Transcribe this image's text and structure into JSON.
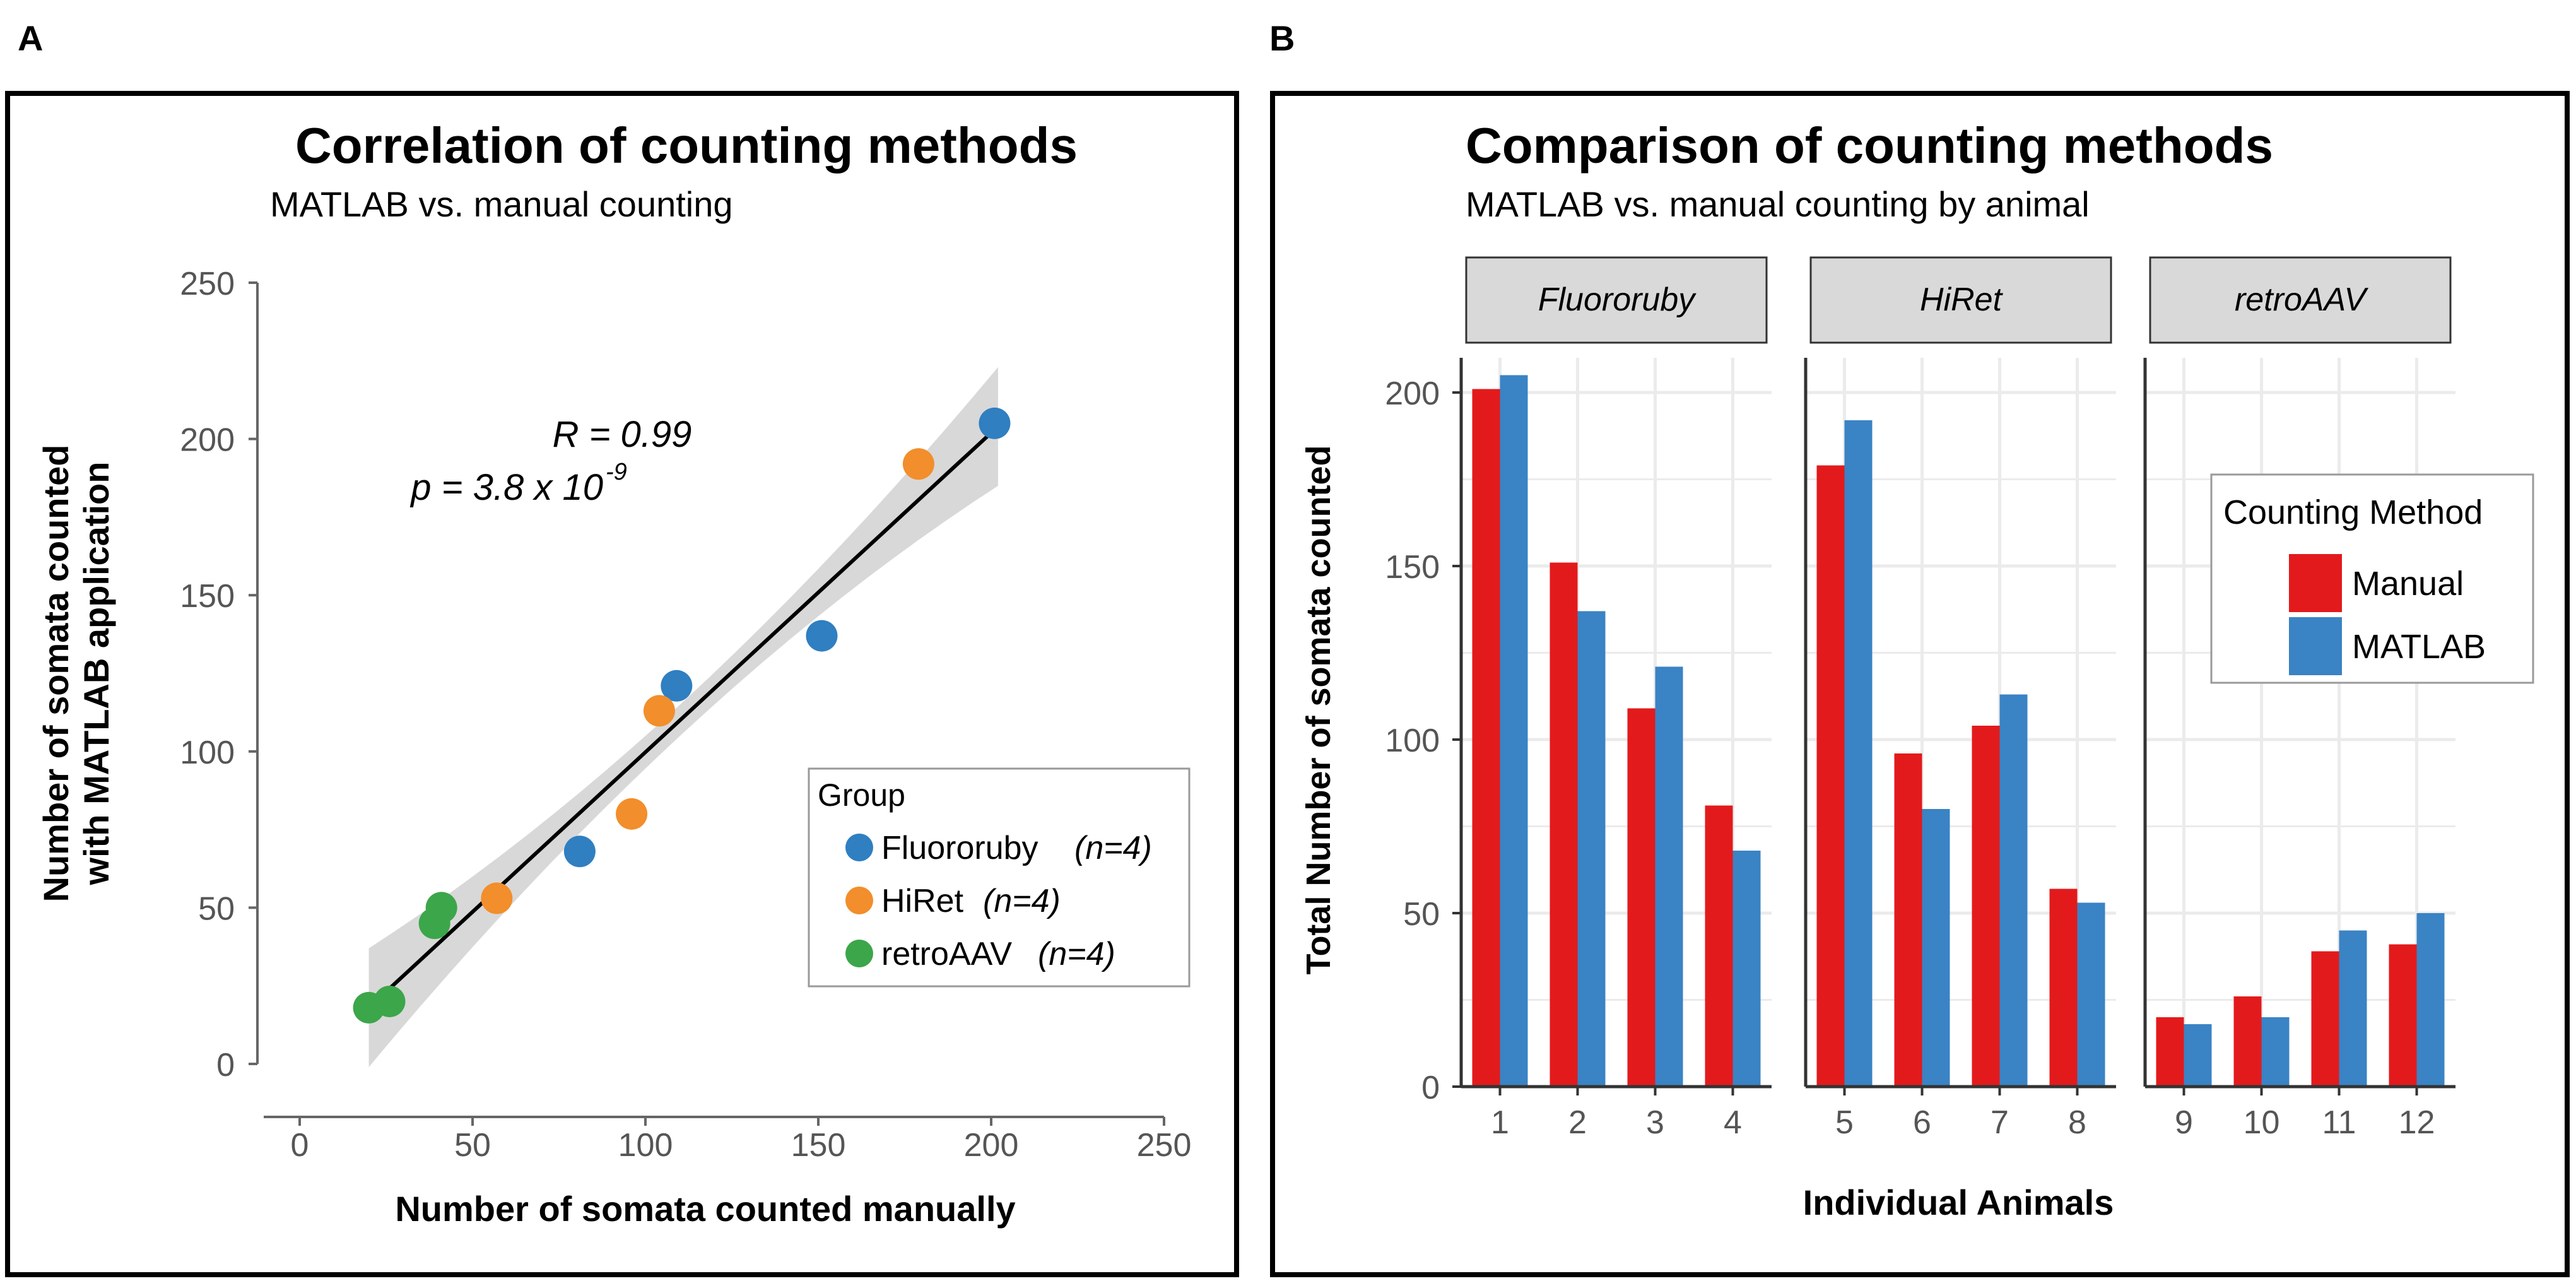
{
  "panel_a": {
    "label": "A",
    "chart_data": {
      "type": "scatter",
      "title": "Correlation of counting methods",
      "subtitle": "MATLAB vs. manual counting",
      "xlabel": "Number of somata counted manually",
      "ylabel": [
        "Number of somata counted",
        "with MATLAB application"
      ],
      "xlim": [
        0,
        250
      ],
      "ylim": [
        0,
        250
      ],
      "xticks": [
        "0",
        "50",
        "100",
        "150",
        "200",
        "250"
      ],
      "yticks": [
        "0",
        "50",
        "100",
        "150",
        "200",
        "250"
      ],
      "annotation": {
        "r": "R = 0.99",
        "p_prefix": "p = 3.8 x 10",
        "p_exp": "-9"
      },
      "regression": {
        "x": [
          20,
          202
        ],
        "y": [
          18,
          204
        ]
      },
      "legend": {
        "title": "Group",
        "position": "lower-right",
        "entries": [
          {
            "name": "Fluororuby",
            "n": "(n=4)",
            "color": "#2f7fc1"
          },
          {
            "name": "HiRet",
            "n": "(n=4)",
            "color": "#f28e2b"
          },
          {
            "name": "retroAAV",
            "n": "(n=4)",
            "color": "#3ca64a"
          }
        ]
      },
      "series": [
        {
          "name": "Fluororuby",
          "color": "#2f7fc1",
          "points": [
            [
              201,
              205
            ],
            [
              151,
              137
            ],
            [
              109,
              121
            ],
            [
              81,
              68
            ]
          ]
        },
        {
          "name": "HiRet",
          "color": "#f28e2b",
          "points": [
            [
              179,
              192
            ],
            [
              104,
              113
            ],
            [
              96,
              80
            ],
            [
              57,
              53
            ]
          ]
        },
        {
          "name": "retroAAV",
          "color": "#3ca64a",
          "points": [
            [
              41,
              50
            ],
            [
              39,
              45
            ],
            [
              26,
              20
            ],
            [
              20,
              18
            ]
          ]
        }
      ]
    }
  },
  "panel_b": {
    "label": "B",
    "chart_data": {
      "type": "bar",
      "title": "Comparison of counting methods",
      "subtitle": "MATLAB vs. manual counting by animal",
      "xlabel": "Individual Animals",
      "ylabel": "Total Number of somata counted",
      "ylim": [
        0,
        210
      ],
      "yticks": [
        "0",
        "50",
        "100",
        "150",
        "200"
      ],
      "legend": {
        "title": "Counting Method",
        "position": "top-right",
        "entries": [
          {
            "name": "Manual",
            "color": "#e31a1c"
          },
          {
            "name": "MATLAB",
            "color": "#3a83c4"
          }
        ]
      },
      "facets": [
        {
          "name": "Fluororuby",
          "categories": [
            "1",
            "2",
            "3",
            "4"
          ],
          "series": [
            {
              "name": "Manual",
              "values": [
                201,
                151,
                109,
                81
              ]
            },
            {
              "name": "MATLAB",
              "values": [
                205,
                137,
                121,
                68
              ]
            }
          ]
        },
        {
          "name": "HiRet",
          "categories": [
            "5",
            "6",
            "7",
            "8"
          ],
          "series": [
            {
              "name": "Manual",
              "values": [
                179,
                96,
                104,
                57
              ]
            },
            {
              "name": "MATLAB",
              "values": [
                192,
                80,
                113,
                53
              ]
            }
          ]
        },
        {
          "name": "retroAAV",
          "categories": [
            "9",
            "10",
            "11",
            "12"
          ],
          "series": [
            {
              "name": "Manual",
              "values": [
                20,
                26,
                39,
                41
              ]
            },
            {
              "name": "MATLAB",
              "values": [
                18,
                20,
                45,
                50
              ]
            }
          ]
        }
      ]
    }
  }
}
